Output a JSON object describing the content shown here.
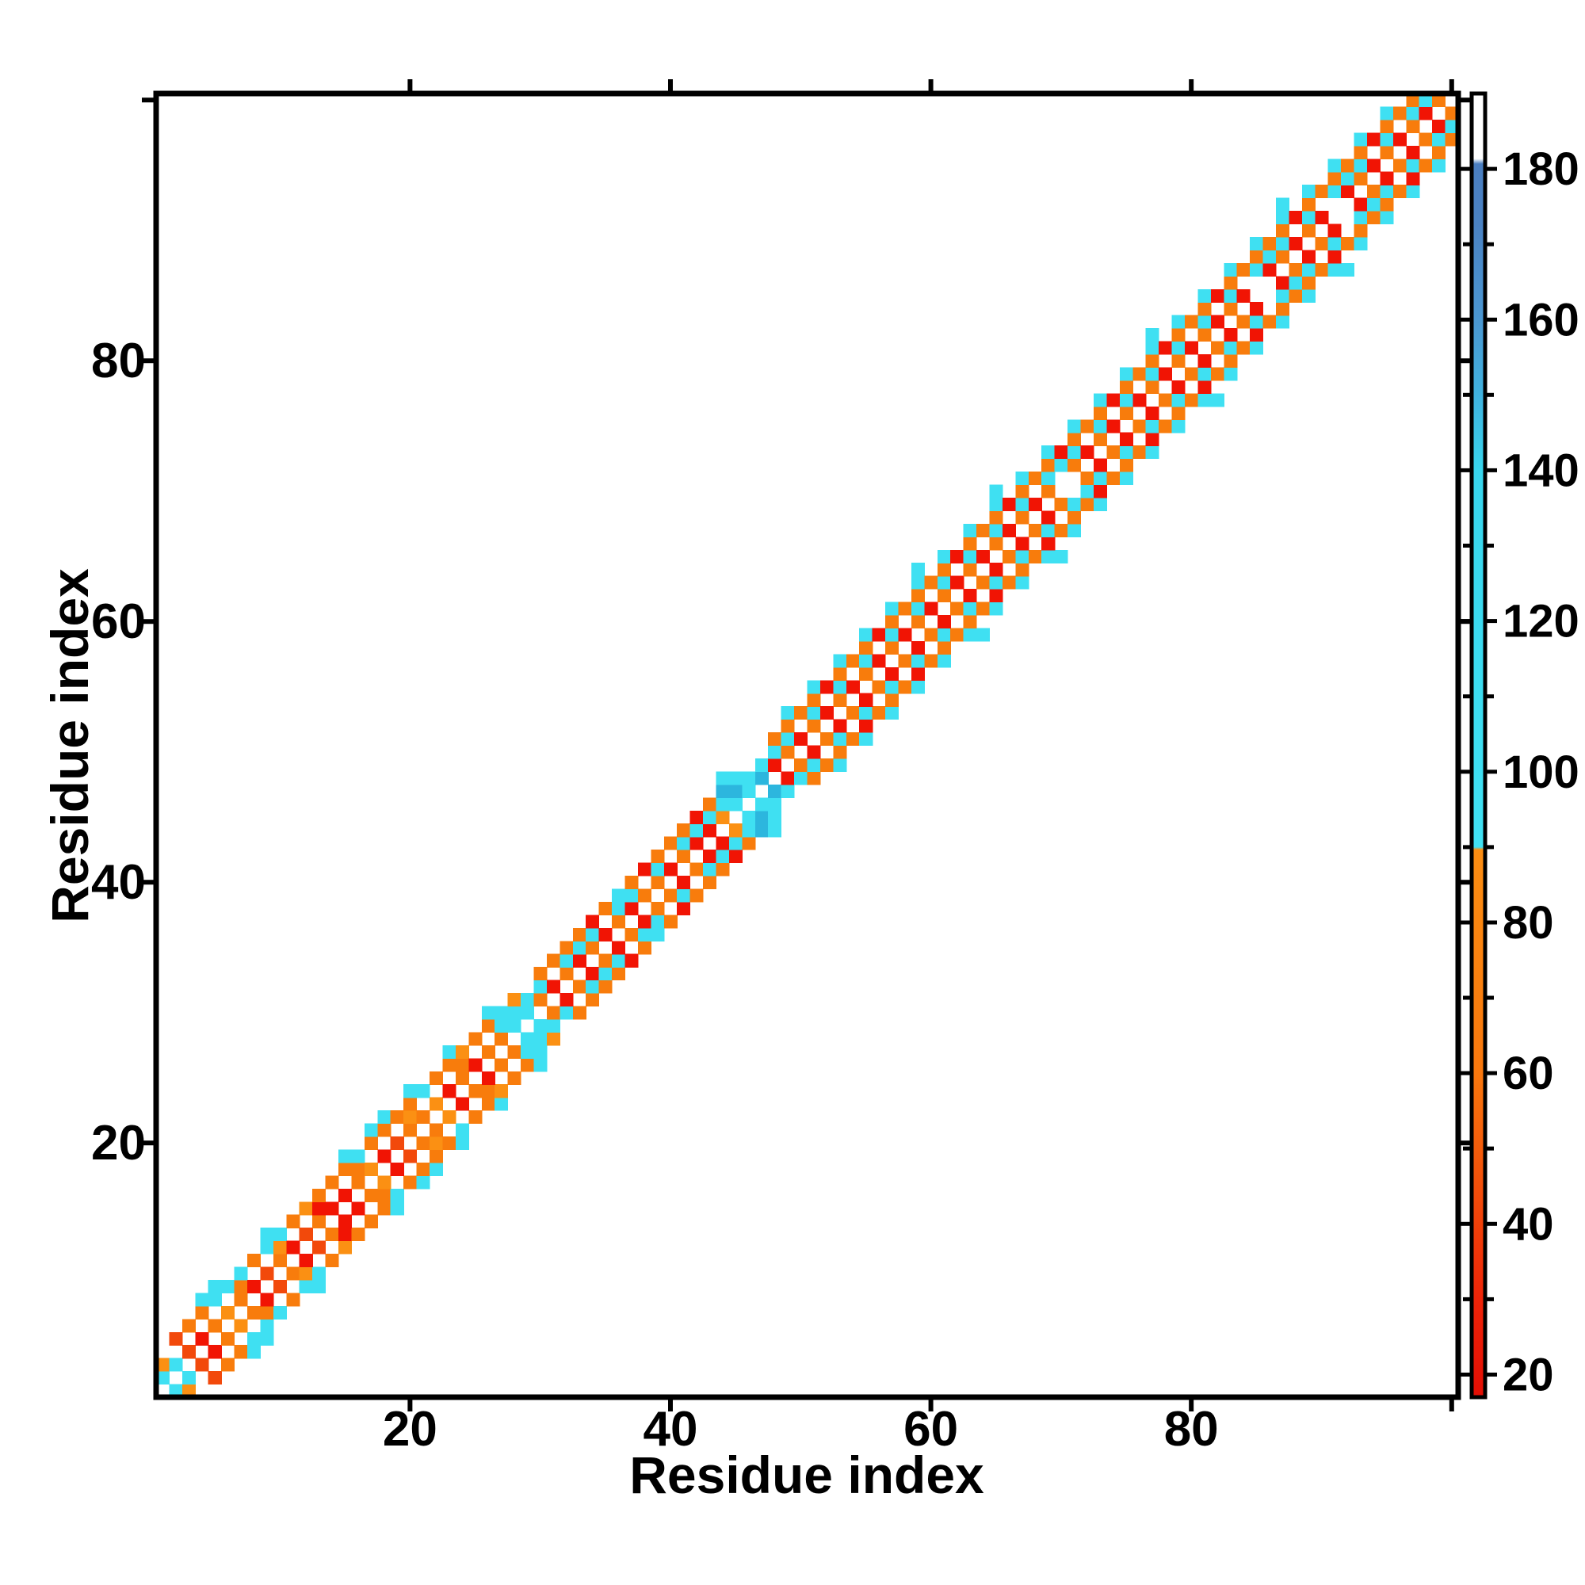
{
  "figure": {
    "background": "#ffffff"
  },
  "axes": {
    "x": {
      "title": "Residue index",
      "range": [
        0,
        100
      ],
      "tick_values": [
        20,
        40,
        60,
        80,
        100
      ],
      "labeled_ticks": [
        20,
        40,
        60,
        80
      ],
      "tick_labels": [
        "20",
        "40",
        "60",
        "80"
      ]
    },
    "y": {
      "title": "Residue index",
      "range": [
        0,
        100
      ],
      "tick_values": [
        20,
        40,
        60,
        80,
        100
      ],
      "labeled_ticks": [
        20,
        40,
        60,
        80
      ],
      "tick_labels": [
        "20",
        "40",
        "60",
        "80"
      ]
    }
  },
  "colorbar": {
    "domain": [
      17,
      190
    ],
    "minor_tick_step": 10,
    "labeled_ticks": [
      20,
      40,
      60,
      80,
      100,
      120,
      140,
      160,
      180
    ],
    "gradient_stops": [
      [
        0.0,
        "#e30e04"
      ],
      [
        0.075,
        "#ee2408"
      ],
      [
        0.162,
        "#f24f0a"
      ],
      [
        0.249,
        "#f8770d"
      ],
      [
        0.42,
        "#fb8d12"
      ],
      [
        0.422,
        "#40e1f3"
      ],
      [
        0.711,
        "#38d5ed"
      ],
      [
        0.769,
        "#40b2df"
      ],
      [
        0.827,
        "#4b97d2"
      ],
      [
        0.9,
        "#4a82c3"
      ],
      [
        0.946,
        "#4a7ec0"
      ],
      [
        0.95,
        "#ffffff"
      ],
      [
        1.0,
        "#ffffff"
      ]
    ]
  },
  "chart_data": {
    "type": "heatmap",
    "title": "",
    "xlabel": "Residue index",
    "ylabel": "Residue index",
    "n_residues": 100,
    "xlim": [
      0,
      100
    ],
    "ylim": [
      0,
      100
    ],
    "grid": false,
    "legend": "colorbar-right",
    "colorbar_range": [
      17,
      190
    ],
    "symmetric": true,
    "diagonal_empty": true,
    "value_classes": {
      "R": {
        "color": "#f11404",
        "value": 25
      },
      "o": {
        "color": "#f2490b",
        "value": 48
      },
      "O": {
        "color": "#f87c0c",
        "value": 70
      },
      "Q": {
        "color": "#fb9013",
        "value": 83
      },
      "C": {
        "color": "#3fe0f2",
        "value": 110
      },
      "D": {
        "color": "#2cb6de",
        "value": 150
      }
    },
    "band_encoding": "band_rows[i-1] lists contact color classes at sequence offsets +1..+5 from residue i; '.' = no contact; matrix is symmetric about the empty main diagonal",
    "band_rows": [
      "CQ...",
      "C.o..",
      "o.O..",
      "R.OC.",
      "O.CC.",
      "Q.C..",
      "OOC..",
      "R.O..",
      "o.CC.",
      "OQC..",
      "R.O..",
      "o.Q..",
      "ORO..",
      "R.O..",
      "R.OC.",
      "OOC..",
      "Q.OC.",
      "R.OC.",
      "o.O..",
      "OQOC.",
      "O.C..",
      "Q.O..",
      "R.OC.",
      "OOQ..",
      "R.O..",
      "O.OC.",
      "OCC..",
      "CCQ..",
      "CC...",
      "OCO..",
      "R.O..",
      "OCO..",
      "RCO..",
      "OCR..",
      "R.O..",
      "OCC..",
      "RCO..",
      "O.R..",
      "OCO..",
      "R.O..",
      "OCO..",
      "RCR..",
      "RCO..",
      "QCDC.",
      "CDC..",
      "CC...",
      "DC...",
      "RCO..",
      "OCOC.",
      "R.O..",
      "OCOC.",
      "R.R..",
      "OCOC.",
      "R.O..",
      "OCOC.",
      "R.R..",
      "OCOC.",
      "R.O..",
      "OCOCC",
      "R.O..",
      "OCOC.",
      "R.R..",
      "OCOC.",
      "R.O..",
      "OCOCC",
      "R.R..",
      "OCOC.",
      "R.O..",
      "OCOC.",
      ".CR..",
      "OCOC.",
      "R.O..",
      "OCOC.",
      "R.R..",
      "OCOC.",
      "R.O..",
      "OCOCC",
      "R.R..",
      "OCOC.",
      "R.O..",
      "OCOC.",
      "R.R..",
      "OCOC.",
      "R.O..",
      ".COC.",
      "RCO..",
      "OCOCC",
      "R.R..",
      "OCOC.",
      "R.O..",
      ".COC.",
      "RCO..",
      "OCOC.",
      "R.R..",
      "OCOC.",
      "R.O..",
      "OCO..",
      "RC...",
      "O...."
    ]
  }
}
